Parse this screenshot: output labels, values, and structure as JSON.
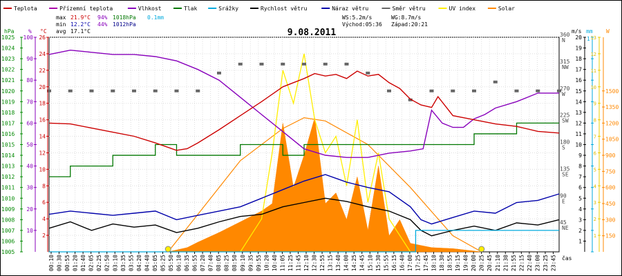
{
  "chart_data": {
    "type": "line",
    "title": "9.08.2011",
    "legend": [
      {
        "name": "Teplota",
        "color": "#cc0000"
      },
      {
        "name": "Přízemní teplota",
        "color": "#aa00aa"
      },
      {
        "name": "Vlhkost",
        "color": "#8800bb"
      },
      {
        "name": "Tlak",
        "color": "#007700"
      },
      {
        "name": "Srážky",
        "color": "#00aadd"
      },
      {
        "name": "Rychlost větru",
        "color": "#000000"
      },
      {
        "name": "Náraz větru",
        "color": "#0000aa"
      },
      {
        "name": "Směr větru",
        "color": "#666666"
      },
      {
        "name": "UV index",
        "color": "#ffee00"
      },
      {
        "name": "Solar",
        "color": "#ff8800"
      }
    ],
    "stats": {
      "max": {
        "label": "max",
        "temp": "21.9°C",
        "hum": "94%",
        "press": "1018hPa",
        "rain": "0.1mm"
      },
      "min": {
        "label": "min",
        "temp": "12.2°C",
        "hum": "44%",
        "press": "1012hPa"
      },
      "avg": {
        "label": "avg",
        "temp": "17.1°C"
      }
    },
    "wind_info": {
      "ws": "WS:5.2m/s",
      "wg": "WG:8.7m/s"
    },
    "sun_info": {
      "sunrise": "Východ:05:36",
      "sunset": "Západ:20:21"
    },
    "axis_units": {
      "press": "hPa",
      "hum": "%",
      "temp": "°C",
      "wind": "m/s",
      "rain": "mm",
      "solar": "W",
      "time": "čas"
    },
    "axes": {
      "press": {
        "min": 1005,
        "max": 1025,
        "ticks": [
          1005,
          1006,
          1007,
          1008,
          1009,
          1010,
          1011,
          1012,
          1013,
          1014,
          1015,
          1016,
          1017,
          1018,
          1019,
          1020,
          1021,
          1022,
          1023,
          1024,
          1025
        ]
      },
      "hum": {
        "min": 0,
        "max": 100,
        "ticks": [
          10,
          20,
          30,
          40,
          50,
          60,
          70,
          80,
          90,
          100
        ]
      },
      "temp": {
        "min": 0,
        "max": 26,
        "ticks": [
          2,
          4,
          6,
          8,
          10,
          12,
          14,
          16,
          18,
          20,
          22,
          24,
          26
        ]
      },
      "dir": {
        "min": 0,
        "max": 360,
        "ticks": [
          {
            "v": 45,
            "deg": "45",
            "dir": "NE"
          },
          {
            "v": 90,
            "deg": "90",
            "dir": "E"
          },
          {
            "v": 135,
            "deg": "135",
            "dir": "SE"
          },
          {
            "v": 180,
            "deg": "180",
            "dir": "S"
          },
          {
            "v": 225,
            "deg": "225",
            "dir": "SW"
          },
          {
            "v": 270,
            "deg": "270",
            "dir": "W"
          },
          {
            "v": 315,
            "deg": "315",
            "dir": "NW"
          },
          {
            "v": 360,
            "deg": "360",
            "dir": "N"
          }
        ]
      },
      "wind": {
        "min": 0,
        "max": 20,
        "ticks": [
          1,
          2,
          3,
          4,
          5,
          6,
          7,
          8,
          9,
          10,
          11,
          12,
          13,
          14,
          15,
          16,
          17,
          18,
          19,
          20
        ]
      },
      "rain": {
        "min": 0,
        "max": 1,
        "ticks": [
          "0",
          "0.1",
          "0.2",
          "0.3",
          "0.4",
          "0.5",
          "0.6",
          "0.7",
          "0.8",
          "0.9",
          "1"
        ]
      },
      "solar": {
        "min": 0,
        "max": 2000,
        "ticks": [
          150,
          300,
          450,
          600,
          750,
          900,
          1050,
          1200,
          1350,
          1500
        ]
      },
      "uv": {
        "min": 0,
        "max": 13,
        "ticks": [
          1,
          2,
          3,
          4,
          5,
          6,
          7,
          8,
          9,
          10,
          11,
          12,
          13
        ]
      }
    },
    "time_labels": [
      "00:10",
      "00:30",
      "00:55",
      "01:20",
      "01:40",
      "02:05",
      "02:25",
      "02:50",
      "03:10",
      "03:35",
      "03:55",
      "04:20",
      "04:40",
      "05:05",
      "05:25",
      "05:50",
      "06:10",
      "06:35",
      "06:55",
      "07:20",
      "07:40",
      "08:05",
      "08:25",
      "08:50",
      "09:10",
      "09:35",
      "09:55",
      "10:20",
      "10:40",
      "11:05",
      "11:25",
      "11:45",
      "12:10",
      "12:30",
      "12:55",
      "13:15",
      "13:40",
      "14:00",
      "14:25",
      "14:45",
      "15:10",
      "15:30",
      "15:55",
      "16:15",
      "16:40",
      "17:00",
      "17:25",
      "17:45",
      "18:10",
      "18:30",
      "18:55",
      "19:15",
      "19:40",
      "20:00",
      "20:25",
      "20:45",
      "21:10",
      "21:30",
      "21:55",
      "22:15",
      "22:40",
      "23:00",
      "23:25",
      "23:45"
    ],
    "x_hours": {
      "min": 0,
      "max": 24
    },
    "sun_markers_hours": [
      5.6,
      20.35
    ],
    "temperature": [
      [
        0,
        15.6
      ],
      [
        1,
        15.5
      ],
      [
        2,
        15.0
      ],
      [
        3,
        14.5
      ],
      [
        4,
        14.0
      ],
      [
        5,
        13.2
      ],
      [
        6,
        12.3
      ],
      [
        6.5,
        12.5
      ],
      [
        7,
        13.2
      ],
      [
        8,
        14.8
      ],
      [
        9,
        16.5
      ],
      [
        10,
        18.2
      ],
      [
        11,
        20.0
      ],
      [
        11.5,
        20.5
      ],
      [
        12,
        21.0
      ],
      [
        12.5,
        21.6
      ],
      [
        13,
        21.3
      ],
      [
        13.5,
        21.5
      ],
      [
        14,
        21.0
      ],
      [
        14.5,
        21.9
      ],
      [
        15,
        21.3
      ],
      [
        15.5,
        21.5
      ],
      [
        16,
        20.5
      ],
      [
        16.5,
        19.8
      ],
      [
        17,
        18.5
      ],
      [
        17.5,
        17.8
      ],
      [
        18,
        17.5
      ],
      [
        18.3,
        18.8
      ],
      [
        18.7,
        17.5
      ],
      [
        19,
        16.5
      ],
      [
        20,
        16.0
      ],
      [
        21,
        15.5
      ],
      [
        22,
        15.2
      ],
      [
        23,
        14.6
      ],
      [
        24,
        14.4
      ]
    ],
    "humidity": [
      [
        0,
        92
      ],
      [
        1,
        94
      ],
      [
        2,
        93
      ],
      [
        3,
        92
      ],
      [
        4,
        92
      ],
      [
        5,
        91
      ],
      [
        6,
        89
      ],
      [
        7,
        85
      ],
      [
        8,
        80
      ],
      [
        9,
        72
      ],
      [
        10,
        64
      ],
      [
        11,
        56
      ],
      [
        12,
        48
      ],
      [
        13,
        45
      ],
      [
        14,
        44
      ],
      [
        15,
        44
      ],
      [
        16,
        46
      ],
      [
        17,
        47
      ],
      [
        17.6,
        48
      ],
      [
        18,
        66
      ],
      [
        18.5,
        60
      ],
      [
        19,
        58
      ],
      [
        19.5,
        58
      ],
      [
        20,
        62
      ],
      [
        20.5,
        64
      ],
      [
        21,
        67
      ],
      [
        22,
        70
      ],
      [
        22.5,
        72
      ],
      [
        23,
        74
      ],
      [
        24,
        74
      ]
    ],
    "pressure": [
      [
        0,
        1012
      ],
      [
        1,
        1013
      ],
      [
        2,
        1013
      ],
      [
        3,
        1014
      ],
      [
        4,
        1014
      ],
      [
        5,
        1015
      ],
      [
        6,
        1014
      ],
      [
        7,
        1014
      ],
      [
        8,
        1014
      ],
      [
        9,
        1015
      ],
      [
        10,
        1015
      ],
      [
        11,
        1014
      ],
      [
        12,
        1015
      ],
      [
        13,
        1015
      ],
      [
        14,
        1015
      ],
      [
        15,
        1015
      ],
      [
        16,
        1015
      ],
      [
        17,
        1015
      ],
      [
        18,
        1015
      ],
      [
        19,
        1015
      ],
      [
        20,
        1016
      ],
      [
        21,
        1016
      ],
      [
        22,
        1017
      ],
      [
        23,
        1017
      ],
      [
        24,
        1017
      ]
    ],
    "wind_speed": [
      [
        0,
        2.2
      ],
      [
        1,
        2.8
      ],
      [
        2,
        2.0
      ],
      [
        3,
        2.6
      ],
      [
        4,
        2.3
      ],
      [
        5,
        2.5
      ],
      [
        6,
        1.8
      ],
      [
        7,
        2.2
      ],
      [
        8,
        2.8
      ],
      [
        9,
        3.3
      ],
      [
        10,
        3.5
      ],
      [
        11,
        4.2
      ],
      [
        12,
        4.6
      ],
      [
        13,
        5.0
      ],
      [
        14,
        4.7
      ],
      [
        15,
        4.2
      ],
      [
        16,
        3.8
      ],
      [
        17,
        3.0
      ],
      [
        17.5,
        2.0
      ],
      [
        18,
        1.5
      ],
      [
        19,
        2.0
      ],
      [
        20,
        2.4
      ],
      [
        21,
        2.0
      ],
      [
        22,
        2.7
      ],
      [
        23,
        2.5
      ],
      [
        24,
        3.0
      ]
    ],
    "wind_gust": [
      [
        0,
        3.5
      ],
      [
        1,
        3.8
      ],
      [
        2,
        3.6
      ],
      [
        3,
        3.4
      ],
      [
        4,
        3.6
      ],
      [
        5,
        3.8
      ],
      [
        6,
        3.0
      ],
      [
        7,
        3.4
      ],
      [
        8,
        3.8
      ],
      [
        9,
        4.2
      ],
      [
        10,
        5.0
      ],
      [
        11,
        5.8
      ],
      [
        12,
        6.6
      ],
      [
        13,
        7.2
      ],
      [
        14,
        6.5
      ],
      [
        15,
        6.0
      ],
      [
        16,
        5.6
      ],
      [
        17,
        4.2
      ],
      [
        17.5,
        3.0
      ],
      [
        18,
        2.6
      ],
      [
        19,
        3.2
      ],
      [
        20,
        3.8
      ],
      [
        21,
        3.6
      ],
      [
        22,
        4.6
      ],
      [
        23,
        4.8
      ],
      [
        24,
        5.4
      ]
    ],
    "wind_direction": [
      [
        0,
        270
      ],
      [
        1,
        270
      ],
      [
        2,
        270
      ],
      [
        3,
        270
      ],
      [
        4,
        270
      ],
      [
        5,
        270
      ],
      [
        6,
        270
      ],
      [
        7,
        270
      ],
      [
        8,
        300
      ],
      [
        9,
        315
      ],
      [
        10,
        315
      ],
      [
        11,
        315
      ],
      [
        12,
        315
      ],
      [
        13,
        315
      ],
      [
        14,
        315
      ],
      [
        15,
        300
      ],
      [
        16,
        270
      ],
      [
        17,
        255
      ],
      [
        18,
        270
      ],
      [
        19,
        270
      ],
      [
        20,
        270
      ],
      [
        21,
        285
      ],
      [
        22,
        270
      ],
      [
        23,
        270
      ],
      [
        24,
        270
      ]
    ],
    "rain": [
      [
        0,
        0
      ],
      [
        17.2,
        0
      ],
      [
        17.25,
        0.1
      ],
      [
        24,
        0.1
      ]
    ],
    "solar": [
      [
        5.6,
        0
      ],
      [
        6.5,
        40
      ],
      [
        7,
        90
      ],
      [
        8,
        180
      ],
      [
        9,
        280
      ],
      [
        10,
        380
      ],
      [
        10.5,
        450
      ],
      [
        11,
        1200
      ],
      [
        11.5,
        600
      ],
      [
        12,
        900
      ],
      [
        12.5,
        1250
      ],
      [
        13,
        450
      ],
      [
        13.5,
        550
      ],
      [
        14,
        300
      ],
      [
        14.5,
        700
      ],
      [
        15,
        200
      ],
      [
        15.5,
        800
      ],
      [
        16,
        150
      ],
      [
        16.5,
        300
      ],
      [
        17,
        80
      ],
      [
        17.5,
        60
      ],
      [
        18,
        40
      ],
      [
        19,
        30
      ],
      [
        20.35,
        0
      ]
    ],
    "solar_clear": [
      [
        5.6,
        0
      ],
      [
        7,
        350
      ],
      [
        9,
        850
      ],
      [
        11,
        1150
      ],
      [
        12,
        1250
      ],
      [
        13,
        1220
      ],
      [
        15,
        1000
      ],
      [
        17,
        600
      ],
      [
        19,
        150
      ],
      [
        20.35,
        0
      ]
    ],
    "uv_index": [
      [
        9,
        0
      ],
      [
        10,
        2
      ],
      [
        10.5,
        6
      ],
      [
        11,
        11
      ],
      [
        11.5,
        9
      ],
      [
        12,
        12
      ],
      [
        12.5,
        8
      ],
      [
        13,
        6
      ],
      [
        13.5,
        7
      ],
      [
        14,
        4
      ],
      [
        14.5,
        8
      ],
      [
        15,
        3
      ],
      [
        15.5,
        6
      ],
      [
        16,
        2
      ],
      [
        17,
        0
      ]
    ]
  }
}
